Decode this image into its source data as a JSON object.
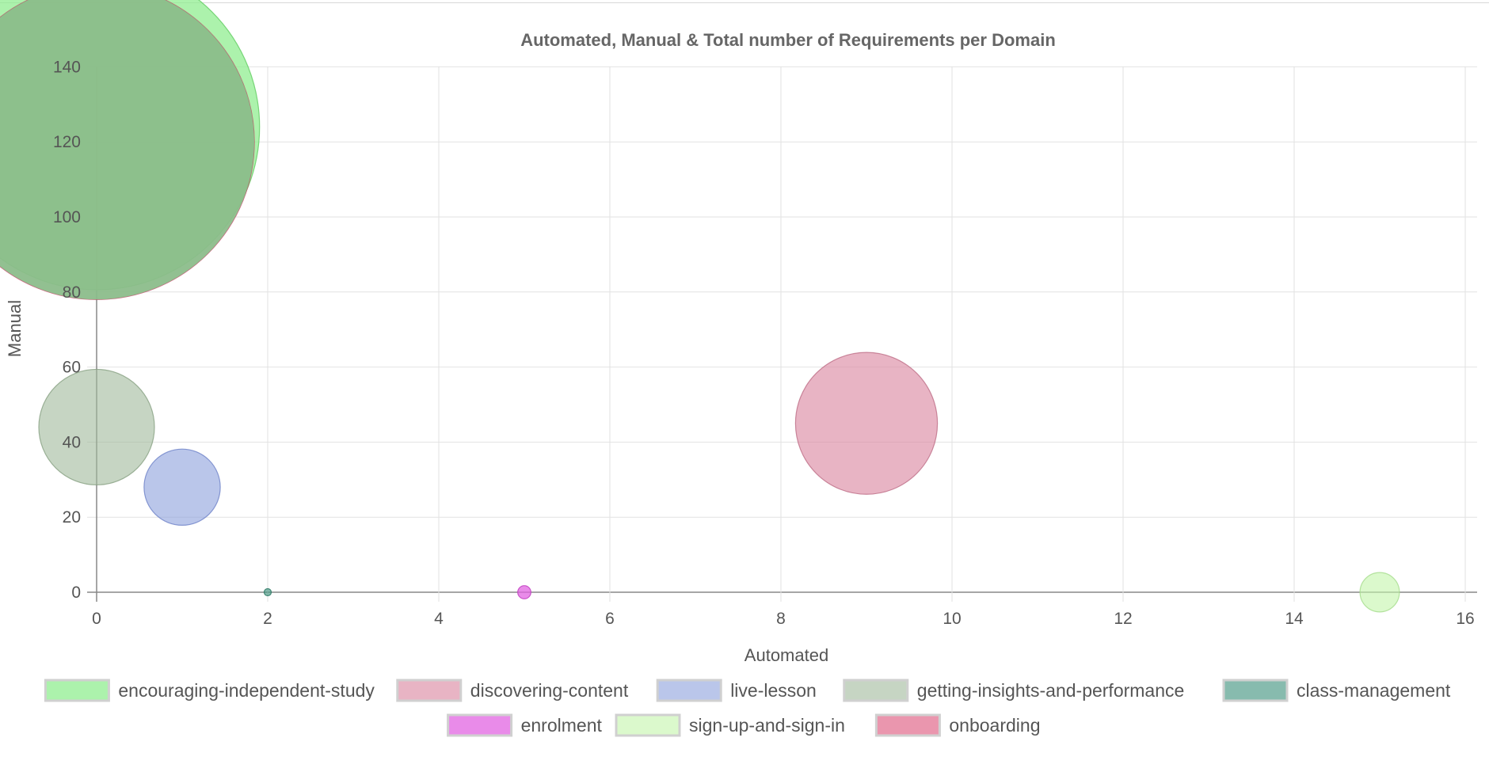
{
  "chart_data": {
    "type": "bubble",
    "title": "Automated, Manual & Total number of Requirements per Domain",
    "xlabel": "Automated",
    "ylabel": "Manual",
    "xlim": [
      0,
      16
    ],
    "ylim": [
      0,
      140
    ],
    "x_ticks": [
      0,
      2,
      4,
      6,
      8,
      10,
      12,
      14,
      16
    ],
    "y_ticks": [
      0,
      20,
      40,
      60,
      80,
      100,
      120,
      140
    ],
    "grid": true,
    "legend_position": "bottom",
    "series": [
      {
        "name": "encouraging-independent-study",
        "x": 0,
        "y": 124,
        "total": 124,
        "fill": "rgba(144,238,144,0.75)",
        "stroke": "rgba(110,210,110,0.9)"
      },
      {
        "name": "discovering-content",
        "x": 9,
        "y": 45,
        "total": 54,
        "fill": "rgba(220,140,165,0.65)",
        "stroke": "rgba(190,110,135,0.8)"
      },
      {
        "name": "live-lesson",
        "x": 1,
        "y": 28,
        "total": 29,
        "fill": "rgba(140,160,220,0.6)",
        "stroke": "rgba(110,130,200,0.8)"
      },
      {
        "name": "getting-insights-and-performance",
        "x": 0,
        "y": 44,
        "total": 44,
        "fill": "rgba(160,185,155,0.6)",
        "stroke": "rgba(135,160,130,0.8)"
      },
      {
        "name": "class-management",
        "x": 2,
        "y": 0,
        "total": 2,
        "fill": "rgba(70,150,130,0.65)",
        "stroke": "rgba(50,125,105,0.9)"
      },
      {
        "name": "enrolment",
        "x": 5,
        "y": 0,
        "total": 5,
        "fill": "rgba(225,100,225,0.75)",
        "stroke": "rgba(195,70,195,0.9)"
      },
      {
        "name": "sign-up-and-sign-in",
        "x": 15,
        "y": 0,
        "total": 15,
        "fill": "rgba(195,245,170,0.6)",
        "stroke": "rgba(165,220,140,0.8)"
      },
      {
        "name": "onboarding",
        "x": 0,
        "y": 120,
        "total": 120,
        "fill": "rgba(220,80,120,0.6)",
        "stroke": "rgba(200,60,100,0.8)"
      }
    ],
    "draw_order": [
      "getting-insights-and-performance",
      "live-lesson",
      "discovering-content",
      "class-management",
      "enrolment",
      "sign-up-and-sign-in",
      "encouraging-independent-study",
      "onboarding"
    ],
    "overlay_tint": {
      "on": "onboarding",
      "fill": "rgba(130,200,140,0.85)"
    }
  }
}
